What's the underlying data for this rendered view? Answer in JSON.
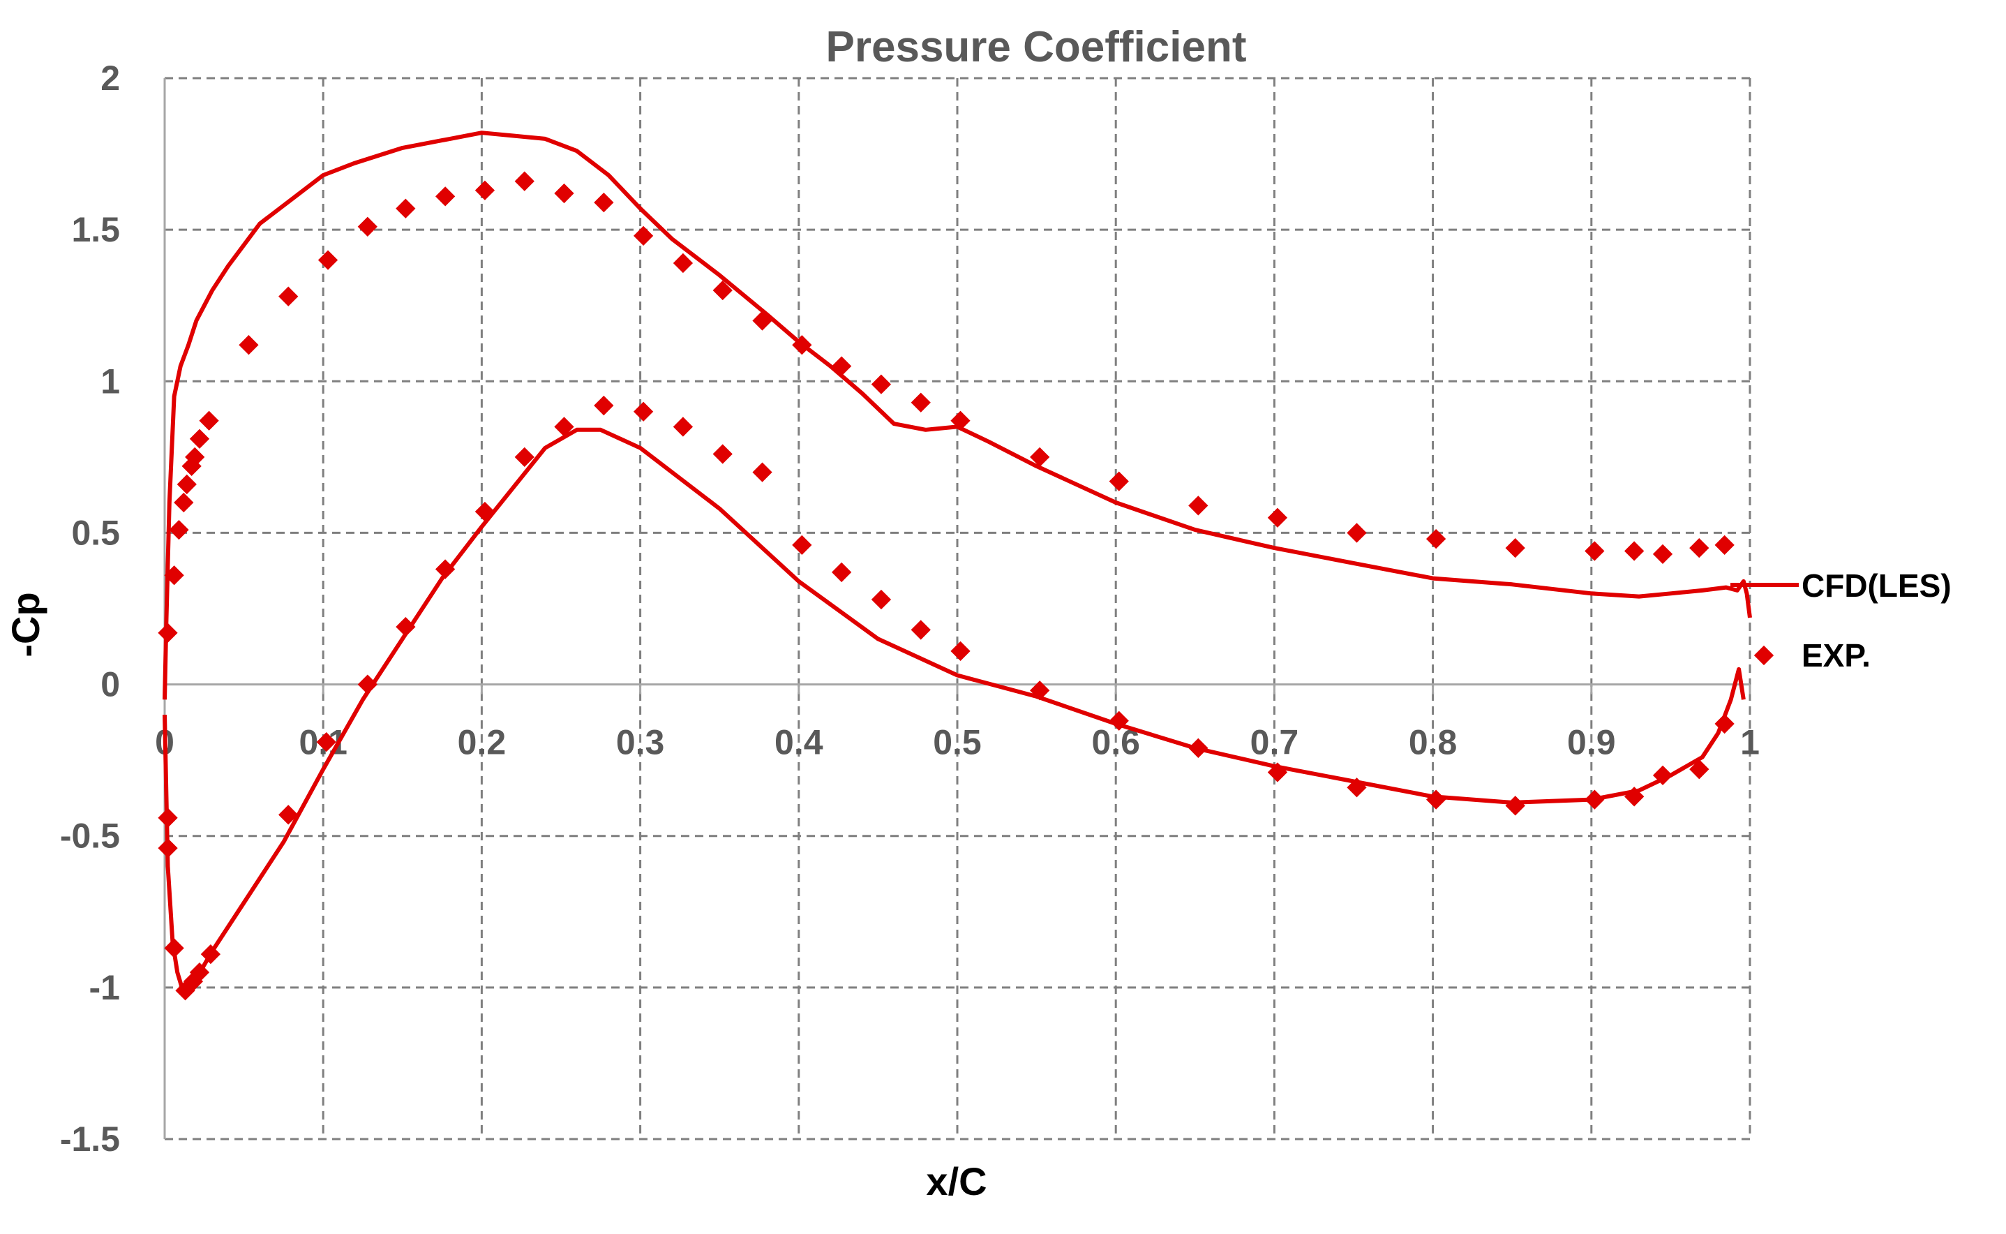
{
  "chart_data": {
    "type": "scatter",
    "title": "Pressure Coefficient",
    "xlabel": "x/C",
    "ylabel": "-Cp",
    "xlim": [
      0,
      1
    ],
    "ylim": [
      -1.5,
      2
    ],
    "xticks": [
      0,
      0.1,
      0.2,
      0.3,
      0.4,
      0.5,
      0.6,
      0.7,
      0.8,
      0.9,
      1
    ],
    "xtick_labels": [
      "0",
      "0.1",
      "0.2",
      "0.3",
      "0.4",
      "0.5",
      "0.6",
      "0.7",
      "0.8",
      "0.9",
      "1"
    ],
    "yticks": [
      2,
      1.5,
      1,
      0.5,
      0,
      -0.5,
      -1,
      -1.5
    ],
    "ytick_labels": [
      "2",
      "1.5",
      "1",
      "0.5",
      "0",
      "-0.5",
      "-1",
      "-1.5"
    ],
    "grid": true,
    "legend_position": "right",
    "series_color": "#E00000",
    "series": [
      {
        "name": "CFD(LES)",
        "style": "line",
        "x": [
          0,
          0.001,
          0.003,
          0.006,
          0.01,
          0.015,
          0.02,
          0.025,
          0.03,
          0.04,
          0.05,
          0.06,
          0.08,
          0.1,
          0.12,
          0.15,
          0.18,
          0.2,
          0.22,
          0.24,
          0.26,
          0.28,
          0.3,
          0.32,
          0.35,
          0.38,
          0.4,
          0.42,
          0.44,
          0.46,
          0.48,
          0.5,
          0.52,
          0.55,
          0.6,
          0.65,
          0.7,
          0.75,
          0.8,
          0.85,
          0.9,
          0.93,
          0.95,
          0.97,
          0.985,
          0.992,
          0.996,
          0.998,
          1.0
        ],
        "y": [
          -0.05,
          0.2,
          0.6,
          0.95,
          1.05,
          1.12,
          1.2,
          1.25,
          1.3,
          1.38,
          1.45,
          1.52,
          1.6,
          1.68,
          1.72,
          1.77,
          1.8,
          1.82,
          1.81,
          1.8,
          1.76,
          1.68,
          1.57,
          1.47,
          1.35,
          1.22,
          1.13,
          1.05,
          0.96,
          0.86,
          0.84,
          0.85,
          0.8,
          0.72,
          0.6,
          0.51,
          0.45,
          0.4,
          0.35,
          0.33,
          0.3,
          0.29,
          0.3,
          0.31,
          0.32,
          0.31,
          0.34,
          0.3,
          0.22
        ],
        "x2": [
          0,
          0.002,
          0.005,
          0.008,
          0.012,
          0.016,
          0.02,
          0.03,
          0.05,
          0.075,
          0.1,
          0.125,
          0.15,
          0.175,
          0.2,
          0.22,
          0.24,
          0.26,
          0.275,
          0.3,
          0.325,
          0.35,
          0.375,
          0.4,
          0.45,
          0.5,
          0.55,
          0.6,
          0.65,
          0.7,
          0.75,
          0.8,
          0.85,
          0.9,
          0.93,
          0.95,
          0.97,
          0.98,
          0.988,
          0.993,
          0.996
        ],
        "y2": [
          -0.1,
          -0.6,
          -0.85,
          -0.95,
          -1.02,
          -1.01,
          -0.97,
          -0.88,
          -0.72,
          -0.52,
          -0.28,
          -0.05,
          0.15,
          0.35,
          0.52,
          0.65,
          0.78,
          0.84,
          0.84,
          0.78,
          0.68,
          0.58,
          0.46,
          0.34,
          0.15,
          0.03,
          -0.04,
          -0.13,
          -0.21,
          -0.27,
          -0.32,
          -0.37,
          -0.39,
          -0.38,
          -0.35,
          -0.3,
          -0.24,
          -0.16,
          -0.05,
          0.05,
          -0.05
        ]
      },
      {
        "name": "EXP.",
        "style": "marker",
        "x": [
          0.002,
          0.006,
          0.009,
          0.012,
          0.014,
          0.017,
          0.019,
          0.022,
          0.028,
          0.053,
          0.078,
          0.103,
          0.128,
          0.152,
          0.177,
          0.202,
          0.227,
          0.252,
          0.277,
          0.302,
          0.327,
          0.352,
          0.377,
          0.402,
          0.427,
          0.452,
          0.477,
          0.502,
          0.552,
          0.602,
          0.652,
          0.702,
          0.752,
          0.802,
          0.852,
          0.902,
          0.927,
          0.945,
          0.968,
          0.984
        ],
        "y": [
          0.17,
          0.36,
          0.51,
          0.6,
          0.66,
          0.72,
          0.75,
          0.81,
          0.87,
          1.12,
          1.28,
          1.4,
          1.51,
          1.57,
          1.61,
          1.63,
          1.66,
          1.62,
          1.59,
          1.48,
          1.39,
          1.3,
          1.2,
          1.12,
          1.05,
          0.99,
          0.93,
          0.87,
          0.75,
          0.67,
          0.59,
          0.55,
          0.5,
          0.48,
          0.45,
          0.44,
          0.44,
          0.43,
          0.45,
          0.46
        ],
        "x2": [
          0.002,
          0.002,
          0.006,
          0.013,
          0.018,
          0.022,
          0.029,
          0.078,
          0.102,
          0.128,
          0.152,
          0.177,
          0.202,
          0.227,
          0.252,
          0.277,
          0.302,
          0.327,
          0.352,
          0.377,
          0.402,
          0.427,
          0.452,
          0.477,
          0.502,
          0.552,
          0.602,
          0.652,
          0.702,
          0.752,
          0.802,
          0.852,
          0.902,
          0.927,
          0.945,
          0.968,
          0.984
        ],
        "y2": [
          -0.44,
          -0.54,
          -0.87,
          -1.01,
          -0.98,
          -0.95,
          -0.89,
          -0.43,
          -0.19,
          0.0,
          0.19,
          0.38,
          0.57,
          0.75,
          0.85,
          0.92,
          0.9,
          0.85,
          0.76,
          0.7,
          0.46,
          0.37,
          0.28,
          0.18,
          0.11,
          -0.02,
          -0.12,
          -0.21,
          -0.29,
          -0.34,
          -0.38,
          -0.4,
          -0.38,
          -0.37,
          -0.3,
          -0.28,
          -0.13
        ]
      }
    ]
  }
}
